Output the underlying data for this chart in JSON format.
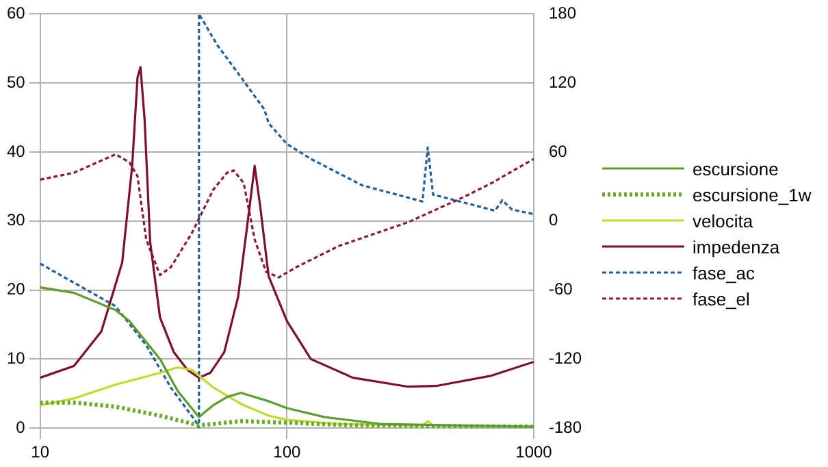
{
  "chart_data": {
    "type": "line",
    "log": "x",
    "grid": true,
    "legend": "right",
    "marker": "none",
    "xlim": [
      10,
      1000
    ],
    "xticks": [
      10,
      100,
      1000
    ],
    "ylim": [
      0,
      60
    ],
    "yticks": [
      0,
      10,
      20,
      30,
      40,
      50,
      60
    ],
    "y2lim": [
      -180,
      180
    ],
    "y2ticks": [
      -180,
      -120,
      -60,
      0,
      60,
      120,
      180
    ],
    "series": [
      {
        "name": "escursione",
        "color": "#5a9e2e",
        "line_style": "solid",
        "x": [
          10,
          13.7,
          20.2,
          23,
          30.6,
          36.2,
          44,
          50.2,
          57.2,
          65.1,
          84.3,
          100,
          142,
          239,
          456,
          1000
        ],
        "values": [
          20.4,
          19.6,
          17.1,
          15.5,
          10,
          5.3,
          1.6,
          3.3,
          4.5,
          5.1,
          3.9,
          2.9,
          1.6,
          0.6,
          0.4,
          0.2
        ]
      },
      {
        "name": "escursione_1w",
        "color": "#6aab2a",
        "line_style": "dotted",
        "x": [
          10,
          13.7,
          20.2,
          30.6,
          39.6,
          44,
          50.2,
          65.1,
          100,
          185,
          1000
        ],
        "values": [
          3.7,
          3.7,
          3.1,
          1.8,
          0.8,
          0.4,
          0.6,
          1.0,
          0.8,
          0.4,
          0.2
        ]
      },
      {
        "name": "velocita",
        "color": "#c0dc28",
        "line_style": "solid",
        "x": [
          10,
          13.7,
          20.2,
          30.6,
          36.2,
          41.3,
          50.2,
          65.1,
          84.3,
          100,
          161,
          354,
          372,
          391,
          1000
        ],
        "values": [
          3.3,
          4.3,
          6.3,
          8,
          8.8,
          8.4,
          5.9,
          3.5,
          1.8,
          1.2,
          0.6,
          0.4,
          1.0,
          0.4,
          0.2
        ]
      },
      {
        "name": "impedenza",
        "color": "#7f0f2b",
        "line_style": "solid",
        "x": [
          10,
          13.7,
          17.7,
          21.5,
          23.6,
          24.8,
          25.5,
          26.5,
          27.9,
          30.6,
          34.8,
          39.6,
          44,
          48.9,
          55.7,
          63.4,
          69.4,
          74,
          78,
          84.3,
          100,
          125,
          185,
          310,
          401,
          675,
          1000
        ],
        "values": [
          7.3,
          9,
          14,
          24,
          38,
          50.8,
          52.3,
          44.7,
          27,
          16,
          11,
          8.4,
          7.3,
          8,
          11,
          19,
          30,
          38,
          32,
          22,
          15.5,
          10,
          7.3,
          6,
          6.1,
          7.6,
          9.6
        ]
      },
      {
        "name": "fase_ac",
        "color": "#1e5fa0",
        "line_style": "dashed",
        "axis": "y2",
        "x": [
          10,
          20.2,
          26.9,
          33.9,
          43,
          44,
          44,
          52.2,
          65.1,
          81,
          84.3,
          100,
          125,
          202,
          354,
          372,
          391,
          697,
          746,
          816,
          1000
        ],
        "values": [
          -37,
          -74,
          -108,
          -145,
          -175,
          -180,
          180,
          153,
          125,
          97,
          85,
          67,
          54,
          31,
          17,
          64,
          23,
          9,
          18,
          10,
          6
        ]
      },
      {
        "name": "fase_el",
        "color": "#8b1a3a",
        "line_style": "dashed",
        "axis": "y2",
        "x": [
          10,
          13.7,
          20.2,
          23,
          24.8,
          26.9,
          30.6,
          33.9,
          41.3,
          50.2,
          57.2,
          60.9,
          66.8,
          74,
          82.2,
          92.7,
          109.4,
          161,
          310,
          522,
          675,
          1000
        ],
        "values": [
          36,
          42,
          58,
          51,
          39,
          -16,
          -47,
          -40,
          -10,
          27,
          42,
          44,
          33,
          -16,
          -44,
          -49,
          -40,
          -22,
          -1,
          21,
          33,
          54
        ]
      }
    ]
  }
}
